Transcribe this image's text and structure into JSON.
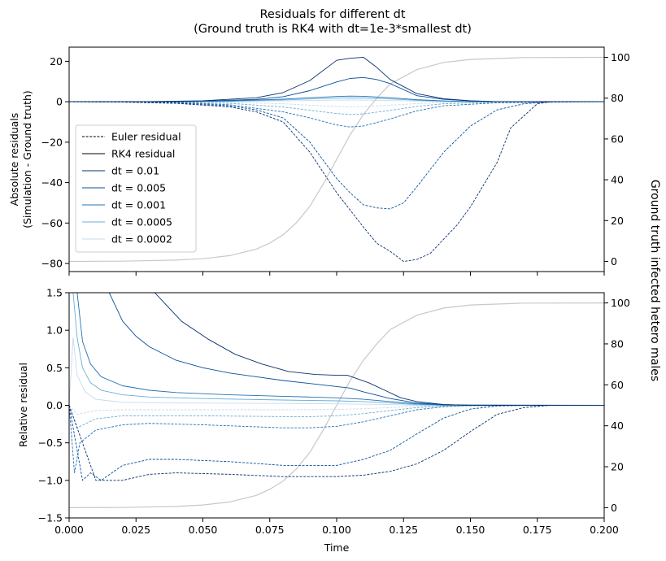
{
  "title_lines": [
    "Residuals for different dt",
    "(Ground truth is RK4 with dt=1e-3*smallest dt)"
  ],
  "x_label": "Time",
  "top_y_label_lines": [
    "Absolute residuals",
    "(Simulation - Ground truth)"
  ],
  "bottom_y_label": "Relative residual",
  "right_y_label": "Ground truth infected hetero males",
  "legend": {
    "placement": "center-left",
    "style_entries": [
      {
        "label": "Euler residual",
        "style": "dashed",
        "color": "#000000"
      },
      {
        "label": "RK4 residual",
        "style": "solid",
        "color": "#000000"
      }
    ],
    "dt_entries": [
      {
        "label": "dt = 0.01",
        "color": "#08306b"
      },
      {
        "label": "dt = 0.005",
        "color": "#08519c"
      },
      {
        "label": "dt = 0.001",
        "color": "#2171b5"
      },
      {
        "label": "dt = 0.0005",
        "color": "#6baed6"
      },
      {
        "label": "dt = 0.0002",
        "color": "#c6dbef"
      }
    ]
  },
  "chart_data": [
    {
      "type": "line",
      "panel": "top",
      "xlim": [
        0,
        0.2
      ],
      "ylim": [
        -84,
        27
      ],
      "y2lim": [
        -5,
        105
      ],
      "x_ticks": [
        "0.000",
        "0.025",
        "0.050",
        "0.075",
        "0.100",
        "0.125",
        "0.150",
        "0.175",
        "0.200"
      ],
      "x_tick_labels_shown": false,
      "y_ticks": [
        -80,
        -60,
        -40,
        -20,
        0,
        20
      ],
      "y_tick_labels": [
        "−80",
        "−60",
        "−40",
        "−20",
        "0",
        "20"
      ],
      "y2_ticks": [
        0,
        20,
        40,
        60,
        80,
        100
      ],
      "y2_tick_labels": [
        "0",
        "20",
        "40",
        "60",
        "80",
        "100"
      ],
      "series": [
        {
          "legend_index": 0,
          "method": "euler",
          "color": "#08306b",
          "x": [
            0,
            0.02,
            0.04,
            0.06,
            0.07,
            0.08,
            0.09,
            0.1,
            0.11,
            0.115,
            0.12,
            0.125,
            0.13,
            0.135,
            0.14,
            0.145,
            0.15,
            0.16,
            0.165,
            0.17,
            0.175,
            0.18,
            0.19,
            0.2
          ],
          "y": [
            0,
            -0.2,
            -0.8,
            -2.5,
            -5,
            -10,
            -25,
            -45,
            -62,
            -70,
            -74,
            -79,
            -78,
            -75,
            -68,
            -61,
            -52,
            -30,
            -13,
            -7,
            -1,
            0,
            0,
            0
          ]
        },
        {
          "legend_index": 1,
          "method": "euler",
          "color": "#08519c",
          "x": [
            0,
            0.02,
            0.04,
            0.06,
            0.07,
            0.08,
            0.09,
            0.1,
            0.105,
            0.11,
            0.115,
            0.12,
            0.125,
            0.13,
            0.14,
            0.15,
            0.16,
            0.17,
            0.18,
            0.2
          ],
          "y": [
            0,
            -0.1,
            -0.5,
            -2,
            -4,
            -8,
            -20,
            -38,
            -45,
            -51,
            -52.5,
            -53,
            -50,
            -42,
            -25,
            -12,
            -4,
            -1,
            0,
            0
          ]
        },
        {
          "legend_index": 2,
          "method": "euler",
          "color": "#2171b5",
          "x": [
            0,
            0.04,
            0.06,
            0.08,
            0.09,
            0.1,
            0.105,
            0.11,
            0.12,
            0.13,
            0.14,
            0.16,
            0.2
          ],
          "y": [
            0,
            -0.2,
            -1.5,
            -5,
            -8,
            -11.5,
            -12.5,
            -12,
            -8.5,
            -4.5,
            -2,
            -0.5,
            0
          ]
        },
        {
          "legend_index": 3,
          "method": "euler",
          "color": "#6baed6",
          "x": [
            0,
            0.04,
            0.06,
            0.08,
            0.09,
            0.1,
            0.105,
            0.11,
            0.12,
            0.13,
            0.14,
            0.16,
            0.2
          ],
          "y": [
            0,
            -0.1,
            -0.8,
            -2.6,
            -4.2,
            -5.8,
            -6.3,
            -6,
            -4.3,
            -2.3,
            -1,
            -0.2,
            0
          ]
        },
        {
          "legend_index": 4,
          "method": "euler",
          "color": "#c6dbef",
          "x": [
            0,
            0.04,
            0.06,
            0.08,
            0.09,
            0.1,
            0.105,
            0.11,
            0.12,
            0.13,
            0.14,
            0.16,
            0.2
          ],
          "y": [
            0,
            -0.05,
            -0.3,
            -1,
            -1.7,
            -2.3,
            -2.5,
            -2.4,
            -1.7,
            -0.9,
            -0.4,
            -0.1,
            0
          ]
        },
        {
          "legend_index": 0,
          "method": "rk4",
          "color": "#08306b",
          "x": [
            0,
            0.03,
            0.05,
            0.07,
            0.08,
            0.09,
            0.1,
            0.105,
            0.11,
            0.115,
            0.12,
            0.13,
            0.14,
            0.15,
            0.16,
            0.2
          ],
          "y": [
            0,
            0.1,
            0.5,
            2,
            4.5,
            10.5,
            20.5,
            21.5,
            22,
            17,
            11,
            4,
            1.5,
            0.5,
            0,
            0
          ]
        },
        {
          "legend_index": 1,
          "method": "rk4",
          "color": "#08519c",
          "x": [
            0,
            0.03,
            0.05,
            0.07,
            0.08,
            0.09,
            0.1,
            0.105,
            0.11,
            0.115,
            0.12,
            0.13,
            0.14,
            0.15,
            0.16,
            0.2
          ],
          "y": [
            0,
            0.05,
            0.3,
            1.2,
            2.5,
            5.5,
            9.8,
            11.5,
            12,
            11,
            9,
            3,
            1.2,
            0.4,
            0,
            0
          ]
        },
        {
          "legend_index": 2,
          "method": "rk4",
          "color": "#2171b5",
          "x": [
            0,
            0.04,
            0.06,
            0.08,
            0.09,
            0.1,
            0.105,
            0.11,
            0.12,
            0.13,
            0.14,
            0.15,
            0.2
          ],
          "y": [
            0,
            0.05,
            0.4,
            1.3,
            2,
            2.6,
            2.8,
            2.7,
            2,
            1,
            0.4,
            0.1,
            0
          ]
        },
        {
          "legend_index": 3,
          "method": "rk4",
          "color": "#6baed6",
          "x": [
            0,
            0.04,
            0.06,
            0.08,
            0.09,
            0.1,
            0.105,
            0.11,
            0.12,
            0.13,
            0.14,
            0.15,
            0.2
          ],
          "y": [
            0,
            0.03,
            0.25,
            0.9,
            1.4,
            1.8,
            1.9,
            1.85,
            1.4,
            0.7,
            0.3,
            0.05,
            0
          ]
        },
        {
          "legend_index": 4,
          "method": "rk4",
          "color": "#c6dbef",
          "x": [
            0,
            0.04,
            0.06,
            0.08,
            0.09,
            0.1,
            0.105,
            0.11,
            0.12,
            0.13,
            0.14,
            0.15,
            0.2
          ],
          "y": [
            0,
            0.01,
            0.1,
            0.4,
            0.6,
            0.8,
            0.85,
            0.8,
            0.6,
            0.3,
            0.1,
            0.02,
            0
          ]
        }
      ],
      "ground_truth": {
        "color": "#c8c8c8",
        "axis": "right",
        "x": [
          0,
          0.02,
          0.04,
          0.05,
          0.06,
          0.07,
          0.075,
          0.08,
          0.085,
          0.09,
          0.095,
          0.1,
          0.105,
          0.11,
          0.115,
          0.12,
          0.13,
          0.14,
          0.15,
          0.17,
          0.2
        ],
        "y": [
          0,
          0.1,
          0.6,
          1.3,
          2.8,
          6,
          9,
          13,
          19,
          27,
          38,
          50,
          62,
          72,
          80,
          87,
          94,
          97.5,
          99,
          99.9,
          100
        ]
      }
    },
    {
      "type": "line",
      "panel": "bottom",
      "xlim": [
        0,
        0.2
      ],
      "ylim": [
        -1.5,
        1.5
      ],
      "y2lim": [
        -5,
        105
      ],
      "x_ticks": [
        "0.000",
        "0.025",
        "0.050",
        "0.075",
        "0.100",
        "0.125",
        "0.150",
        "0.175",
        "0.200"
      ],
      "x_tick_labels_shown": true,
      "y_ticks": [
        -1.5,
        -1.0,
        -0.5,
        0.0,
        0.5,
        1.0,
        1.5
      ],
      "y_tick_labels": [
        "−1.5",
        "−1.0",
        "−0.5",
        "0.0",
        "0.5",
        "1.0",
        "1.5"
      ],
      "y2_ticks": [
        0,
        20,
        40,
        60,
        80,
        100
      ],
      "y2_tick_labels": [
        "0",
        "20",
        "40",
        "60",
        "80",
        "100"
      ],
      "series": [
        {
          "legend_index": 0,
          "method": "euler",
          "color": "#08306b",
          "x": [
            0,
            0.01,
            0.02,
            0.03,
            0.04,
            0.06,
            0.08,
            0.1,
            0.11,
            0.12,
            0.13,
            0.14,
            0.15,
            0.16,
            0.17,
            0.18,
            0.2
          ],
          "y": [
            0,
            -1.0,
            -1.0,
            -0.92,
            -0.9,
            -0.92,
            -0.95,
            -0.95,
            -0.93,
            -0.88,
            -0.78,
            -0.6,
            -0.35,
            -0.12,
            -0.03,
            0,
            0
          ]
        },
        {
          "legend_index": 1,
          "method": "euler",
          "color": "#08519c",
          "x": [
            0,
            0.005,
            0.008,
            0.012,
            0.02,
            0.03,
            0.04,
            0.06,
            0.08,
            0.1,
            0.11,
            0.12,
            0.13,
            0.14,
            0.15,
            0.16,
            0.17,
            0.2
          ],
          "y": [
            0,
            -1.0,
            -0.9,
            -1.0,
            -0.8,
            -0.72,
            -0.72,
            -0.75,
            -0.8,
            -0.8,
            -0.72,
            -0.6,
            -0.38,
            -0.17,
            -0.05,
            -0.01,
            0,
            0
          ]
        },
        {
          "legend_index": 2,
          "method": "euler",
          "color": "#2171b5",
          "x": [
            0,
            0.002,
            0.004,
            0.01,
            0.02,
            0.03,
            0.05,
            0.08,
            0.09,
            0.1,
            0.11,
            0.12,
            0.13,
            0.14,
            0.15,
            0.2
          ],
          "y": [
            0,
            -0.9,
            -0.5,
            -0.33,
            -0.26,
            -0.24,
            -0.26,
            -0.3,
            -0.3,
            -0.28,
            -0.22,
            -0.14,
            -0.06,
            -0.02,
            0,
            0
          ]
        },
        {
          "legend_index": 3,
          "method": "euler",
          "color": "#6baed6",
          "x": [
            0,
            0.003,
            0.01,
            0.02,
            0.05,
            0.08,
            0.09,
            0.1,
            0.11,
            0.12,
            0.13,
            0.14,
            0.2
          ],
          "y": [
            0,
            -0.3,
            -0.18,
            -0.14,
            -0.14,
            -0.15,
            -0.15,
            -0.14,
            -0.11,
            -0.07,
            -0.03,
            -0.01,
            0
          ]
        },
        {
          "legend_index": 4,
          "method": "euler",
          "color": "#c6dbef",
          "x": [
            0,
            0.003,
            0.01,
            0.02,
            0.05,
            0.08,
            0.1,
            0.11,
            0.12,
            0.13,
            0.14,
            0.2
          ],
          "y": [
            0,
            -0.12,
            -0.07,
            -0.06,
            -0.06,
            -0.06,
            -0.055,
            -0.045,
            -0.03,
            -0.015,
            -0.005,
            0
          ]
        },
        {
          "legend_index": 0,
          "method": "rk4",
          "color": "#08306b",
          "x": [
            0.032,
            0.042,
            0.052,
            0.062,
            0.072,
            0.082,
            0.092,
            0.1,
            0.104,
            0.112,
            0.118,
            0.124,
            0.13,
            0.14,
            0.15,
            0.16,
            0.2
          ],
          "y": [
            1.5,
            1.12,
            0.88,
            0.68,
            0.55,
            0.45,
            0.41,
            0.4,
            0.4,
            0.3,
            0.2,
            0.1,
            0.05,
            0.01,
            0,
            0,
            0
          ]
        },
        {
          "legend_index": 1,
          "method": "rk4",
          "color": "#08519c",
          "x": [
            0.015,
            0.02,
            0.025,
            0.03,
            0.04,
            0.05,
            0.06,
            0.07,
            0.08,
            0.09,
            0.1,
            0.105,
            0.11,
            0.12,
            0.13,
            0.14,
            0.15,
            0.2
          ],
          "y": [
            1.5,
            1.12,
            0.92,
            0.78,
            0.6,
            0.5,
            0.43,
            0.38,
            0.33,
            0.29,
            0.25,
            0.23,
            0.18,
            0.09,
            0.03,
            0.01,
            0,
            0
          ]
        },
        {
          "legend_index": 2,
          "method": "rk4",
          "color": "#2171b5",
          "x": [
            0.003,
            0.005,
            0.008,
            0.012,
            0.02,
            0.03,
            0.04,
            0.06,
            0.08,
            0.1,
            0.11,
            0.12,
            0.13,
            0.14,
            0.2
          ],
          "y": [
            1.5,
            0.85,
            0.55,
            0.38,
            0.26,
            0.2,
            0.17,
            0.14,
            0.12,
            0.1,
            0.08,
            0.05,
            0.02,
            0.005,
            0
          ]
        },
        {
          "legend_index": 3,
          "method": "rk4",
          "color": "#6baed6",
          "x": [
            0.0015,
            0.003,
            0.005,
            0.008,
            0.012,
            0.02,
            0.03,
            0.05,
            0.08,
            0.1,
            0.11,
            0.12,
            0.13,
            0.14,
            0.2
          ],
          "y": [
            1.5,
            0.9,
            0.5,
            0.3,
            0.2,
            0.14,
            0.11,
            0.09,
            0.07,
            0.06,
            0.05,
            0.03,
            0.01,
            0,
            0
          ]
        },
        {
          "legend_index": 4,
          "method": "rk4",
          "color": "#c6dbef",
          "x": [
            0,
            0.0015,
            0.003,
            0.006,
            0.01,
            0.02,
            0.04,
            0.08,
            0.1,
            0.12,
            0.13,
            0.2
          ],
          "y": [
            0,
            0.9,
            0.4,
            0.18,
            0.08,
            0.04,
            0.03,
            0.025,
            0.02,
            0.01,
            0,
            0
          ]
        }
      ],
      "ground_truth": {
        "color": "#c8c8c8",
        "axis": "right",
        "x": [
          0,
          0.02,
          0.04,
          0.05,
          0.06,
          0.07,
          0.075,
          0.08,
          0.085,
          0.09,
          0.095,
          0.1,
          0.105,
          0.11,
          0.115,
          0.12,
          0.13,
          0.14,
          0.15,
          0.17,
          0.2
        ],
        "y": [
          0,
          0.1,
          0.6,
          1.3,
          2.8,
          6,
          9,
          13,
          19,
          27,
          38,
          50,
          62,
          72,
          80,
          87,
          94,
          97.5,
          99,
          99.9,
          100
        ]
      }
    }
  ]
}
